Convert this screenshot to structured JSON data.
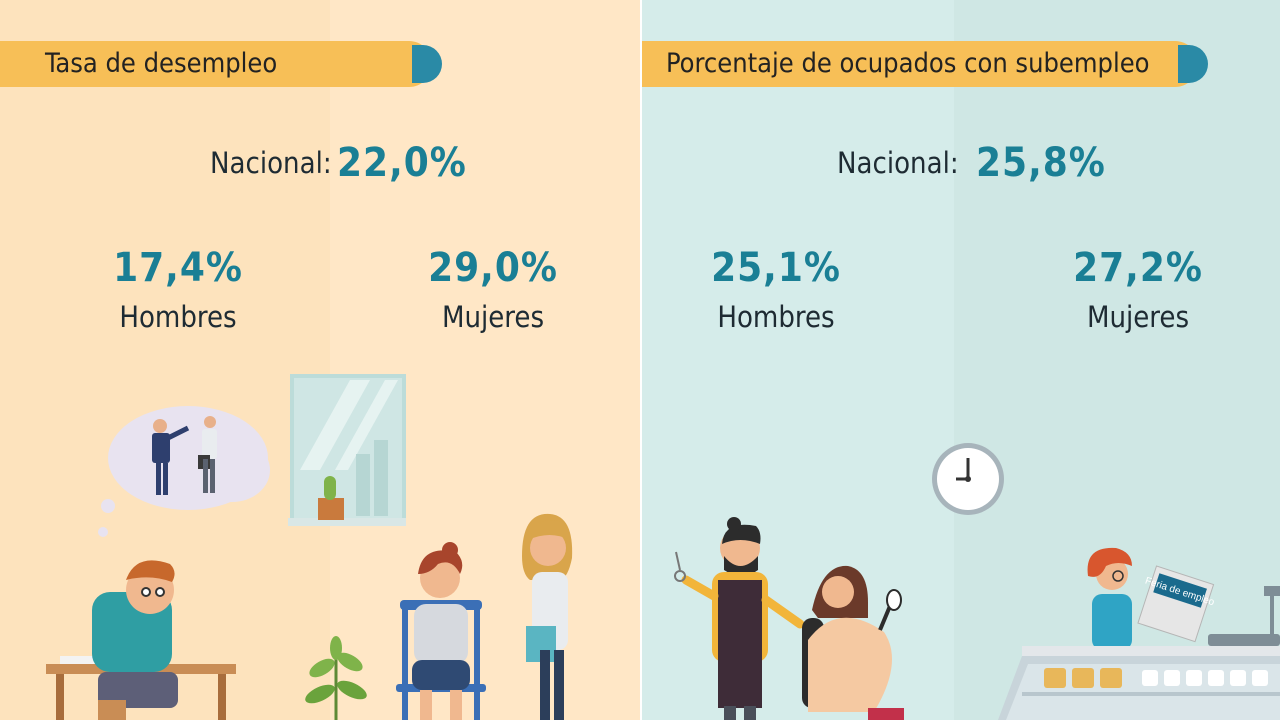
{
  "left": {
    "title": "Tasa de desempleo",
    "national_label": "Nacional:",
    "national_value": "22,0%",
    "men_value": "17,4%",
    "men_label": "Hombres",
    "women_value": "29,0%",
    "women_label": "Mujeres"
  },
  "right": {
    "title": "Porcentaje de ocupados con subempleo",
    "national_label": "Nacional:",
    "national_value": "25,8%",
    "men_value": "25,1%",
    "men_label": "Hombres",
    "women_value": "27,2%",
    "women_label": "Mujeres",
    "sign_text": "Feria de empleo"
  },
  "colors": {
    "banner": "#f7bf57",
    "banner_accent": "#2a8aa6",
    "value_text": "#1a7f95",
    "left_bg": "#fde3bd",
    "right_bg": "#d5ecea"
  }
}
